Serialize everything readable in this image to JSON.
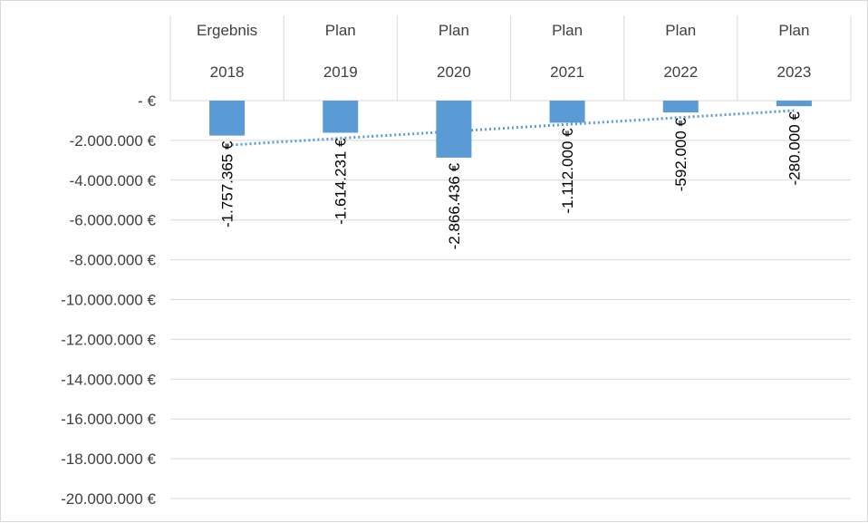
{
  "chart_data": {
    "type": "bar",
    "categories": [
      [
        "Ergebnis",
        "2018"
      ],
      [
        "Plan",
        "2019"
      ],
      [
        "Plan",
        "2020"
      ],
      [
        "Plan",
        "2021"
      ],
      [
        "Plan",
        "2022"
      ],
      [
        "Plan",
        "2023"
      ]
    ],
    "values": [
      -1757365,
      -1614231,
      -2866436,
      -1112000,
      -592000,
      -280000
    ],
    "data_labels": [
      "-1.757.365 €",
      "-1.614.231 €",
      "-2.866.436 €",
      "-1.112.000 €",
      "-592.000 €",
      "-280.000 €"
    ],
    "y_ticks": [
      0,
      -2000000,
      -4000000,
      -6000000,
      -8000000,
      -10000000,
      -12000000,
      -14000000,
      -16000000,
      -18000000,
      -20000000
    ],
    "y_tick_labels": [
      "-   €",
      "-2.000.000 €",
      "-4.000.000 €",
      "-6.000.000 €",
      "-8.000.000 €",
      "-10.000.000 €",
      "-12.000.000 €",
      "-14.000.000 €",
      "-16.000.000 €",
      "-18.000.000 €",
      "-20.000.000 €"
    ],
    "ylim": [
      -20000000,
      0
    ],
    "trendline": {
      "type": "linear",
      "style": "dotted"
    },
    "title": "",
    "xlabel": "",
    "ylabel": "",
    "grid": true,
    "colors": {
      "bar": "#5b9bd5",
      "trendline": "#5b9bd5",
      "grid": "#d9d9d9",
      "text": "#404040"
    }
  }
}
